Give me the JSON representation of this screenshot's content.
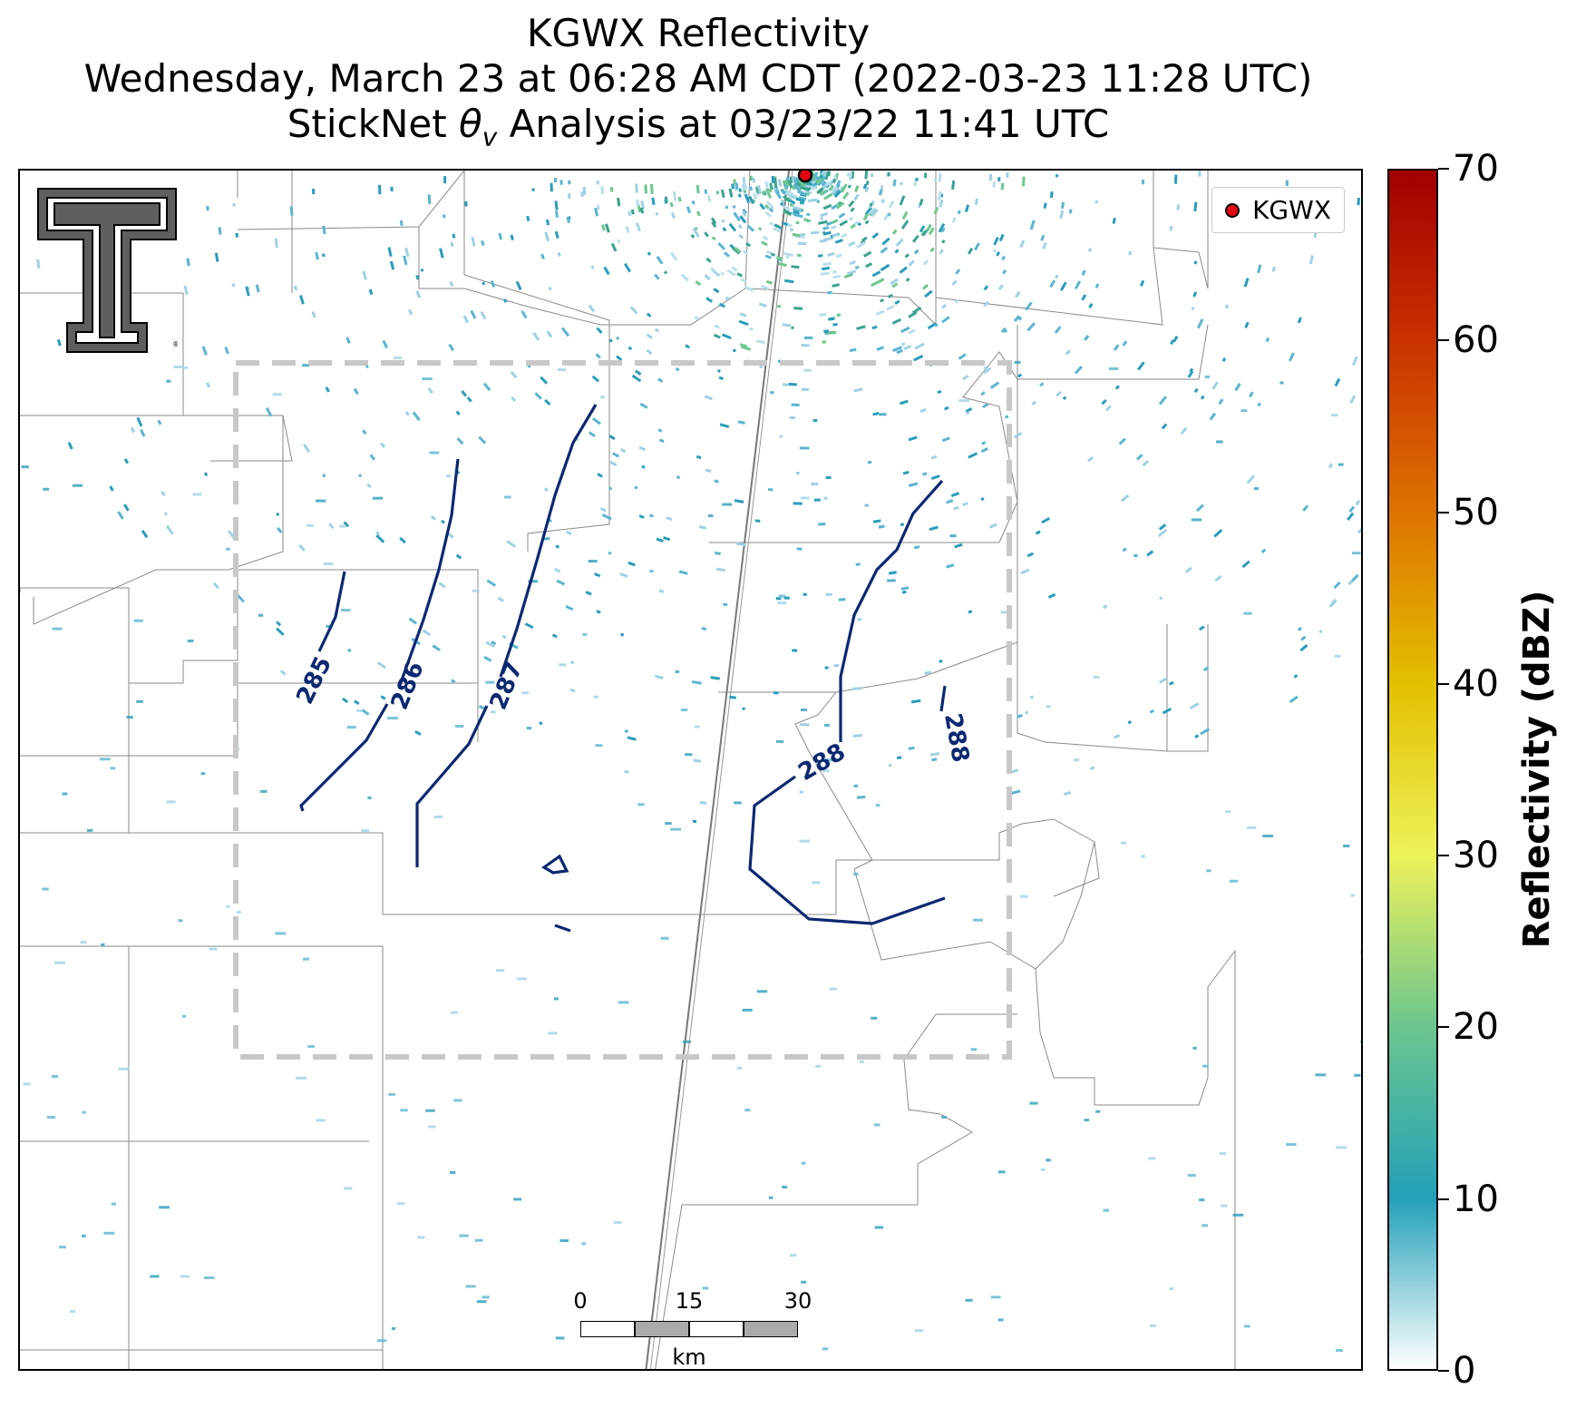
{
  "title": {
    "line1": "KGWX Reflectivity",
    "line2": "Wednesday, March 23 at 06:28 AM CDT (2022-03-23 11:28 UTC)",
    "line3": "StickNet θv Analysis at 03/23/22 11:41 UTC"
  },
  "legend": {
    "label": "KGWX",
    "marker_color": "#e30613"
  },
  "colorbar": {
    "label": "Reflectivity (dBZ)",
    "min": 0,
    "max": 70,
    "ticks": [
      "0",
      "10",
      "20",
      "30",
      "40",
      "50",
      "60",
      "70"
    ],
    "colors": [
      "#ffffff",
      "#23a0b8",
      "#6cc68f",
      "#edf25a",
      "#e3c000",
      "#dd7300",
      "#c93200",
      "#a00000"
    ]
  },
  "contours": {
    "color": "#0b2872",
    "labels": [
      "285",
      "286",
      "287",
      "288",
      "288"
    ]
  },
  "scale_bar": {
    "ticks": [
      "0",
      "15",
      "30"
    ],
    "unit": "km"
  },
  "logo": {
    "name": "texas-tech-double-t-logo"
  }
}
